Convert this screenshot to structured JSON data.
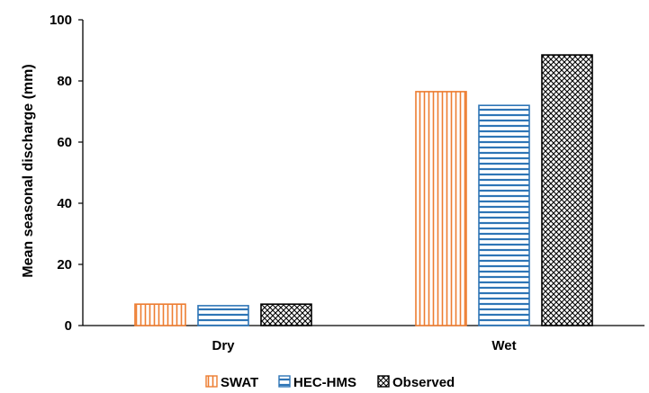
{
  "chart_data": {
    "type": "bar",
    "categories": [
      "Dry",
      "Wet"
    ],
    "series": [
      {
        "name": "SWAT",
        "values": [
          7,
          76.5
        ],
        "color": "#ed7d31",
        "pattern": "vertical-lines"
      },
      {
        "name": "HEC-HMS",
        "values": [
          6.5,
          72
        ],
        "color": "#2e75b6",
        "pattern": "horizontal-lines"
      },
      {
        "name": "Observed",
        "values": [
          7,
          88.5
        ],
        "color": "#000000",
        "pattern": "crosshatch"
      }
    ],
    "title": "",
    "xlabel": "",
    "ylabel": "Mean seasonal discharge (mm)",
    "ylim": [
      0,
      100
    ],
    "yticks": [
      "0",
      "20",
      "40",
      "60",
      "80",
      "100"
    ],
    "grid": false,
    "legend_position": "bottom"
  }
}
